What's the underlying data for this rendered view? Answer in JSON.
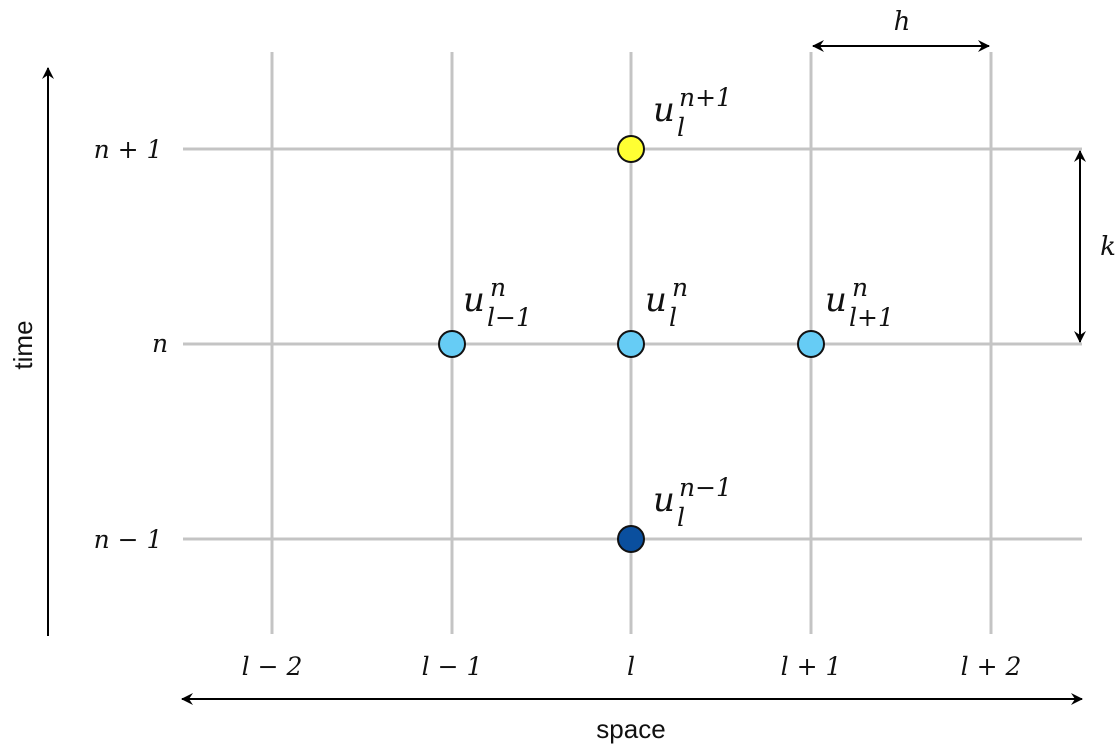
{
  "diagram": {
    "axes": {
      "time_label": "time",
      "space_label": "space"
    },
    "time_levels": [
      {
        "id": "n-plus-1",
        "label": "n + 1"
      },
      {
        "id": "n",
        "label": "n"
      },
      {
        "id": "n-minus-1",
        "label": "n − 1"
      }
    ],
    "space_indices": [
      {
        "id": "l-minus-2",
        "label": "l − 2"
      },
      {
        "id": "l-minus-1",
        "label": "l − 1"
      },
      {
        "id": "l",
        "label": "l"
      },
      {
        "id": "l-plus-1",
        "label": "l + 1"
      },
      {
        "id": "l-plus-2",
        "label": "l + 2"
      }
    ],
    "spacing": {
      "h_label": "h",
      "k_label": "k"
    },
    "nodes": [
      {
        "id": "u-l-n-plus-1",
        "base": "u",
        "sub": "l",
        "sup": "n+1",
        "color": "#ffff33"
      },
      {
        "id": "u-l-minus-1-n",
        "base": "u",
        "sub": "l−1",
        "sup": "n",
        "color": "#66ccf5"
      },
      {
        "id": "u-l-n",
        "base": "u",
        "sub": "l",
        "sup": "n",
        "color": "#66ccf5"
      },
      {
        "id": "u-l-plus-1-n",
        "base": "u",
        "sub": "l+1",
        "sup": "n",
        "color": "#66ccf5"
      },
      {
        "id": "u-l-n-minus-1",
        "base": "u",
        "sub": "l",
        "sup": "n−1",
        "color": "#0a4f9e"
      }
    ]
  }
}
